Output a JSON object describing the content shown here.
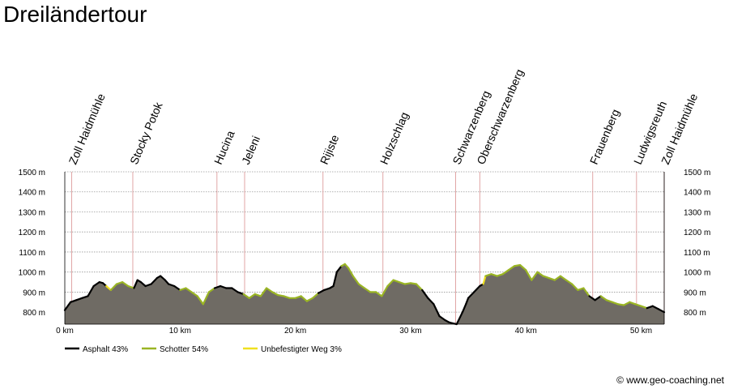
{
  "title": "Dreiländertour",
  "copyright": "© www.geo-coaching.net",
  "colors": {
    "profile_fill": "#6f6b64",
    "asphalt": "#000000",
    "gravel": "#9ab524",
    "unpaved": "#f0e020",
    "waypoint_line": "#d99090",
    "grid": "#999999"
  },
  "chart_data": {
    "type": "area",
    "title": "Dreiländertour",
    "xlabel": "",
    "ylabel": "",
    "xlim": [
      0,
      52
    ],
    "ylim": [
      740,
      1500
    ],
    "x_ticks": [
      0,
      10,
      20,
      30,
      40,
      50
    ],
    "x_tick_labels": [
      "0 km",
      "10 km",
      "20 km",
      "30 km",
      "40 km",
      "50 km"
    ],
    "y_ticks": [
      800,
      900,
      1000,
      1100,
      1200,
      1300,
      1400,
      1500
    ],
    "y_tick_labels": [
      "800 m",
      "900 m",
      "1000 m",
      "1100 m",
      "1200 m",
      "1300 m",
      "1400 m",
      "1500 m"
    ],
    "grid": true,
    "legend_position": "bottom-left",
    "waypoints": [
      {
        "name": "Zoll Haidmühle",
        "km": 0.6
      },
      {
        "name": "Stocky Potok",
        "km": 5.9
      },
      {
        "name": "Hucina",
        "km": 13.2
      },
      {
        "name": "Jeleni",
        "km": 15.6
      },
      {
        "name": "Rijiste",
        "km": 22.4
      },
      {
        "name": "Holzschlag",
        "km": 27.6
      },
      {
        "name": "Schwarzenberg",
        "km": 33.9
      },
      {
        "name": "Oberschwarzenberg",
        "km": 36.0
      },
      {
        "name": "Frauenberg",
        "km": 45.8
      },
      {
        "name": "Ludwigsreuth",
        "km": 49.6
      },
      {
        "name": "Zoll Haidmühle",
        "km": 52.0
      }
    ],
    "surface_legend": [
      {
        "name": "Asphalt 43%",
        "key": "asphalt"
      },
      {
        "name": "Schotter 54%",
        "key": "gravel"
      },
      {
        "name": "Unbefestigter Weg 3%",
        "key": "unpaved"
      }
    ],
    "profile": {
      "x": [
        0,
        0.5,
        1,
        1.5,
        2,
        2.5,
        3,
        3.3,
        3.6,
        4,
        4.5,
        5,
        5.5,
        6,
        6.3,
        6.6,
        7,
        7.5,
        8,
        8.3,
        8.7,
        9,
        9.5,
        10,
        10.5,
        11,
        11.5,
        12,
        12.5,
        13,
        13.5,
        14,
        14.5,
        15,
        15.5,
        16,
        16.5,
        17,
        17.5,
        18,
        18.5,
        19,
        19.5,
        20,
        20.5,
        21,
        21.5,
        22,
        22.5,
        23,
        23.3,
        23.6,
        24,
        24.3,
        24.6,
        25,
        25.5,
        26,
        26.5,
        27,
        27.5,
        28,
        28.5,
        29,
        29.5,
        30,
        30.5,
        31,
        31.5,
        32,
        32.5,
        33,
        33.3,
        33.6,
        34,
        34.5,
        34.8,
        35,
        35.5,
        36,
        36.3,
        36.5,
        37,
        37.5,
        38,
        38.5,
        39,
        39.5,
        40,
        40.5,
        41,
        41.5,
        42,
        42.5,
        43,
        43.5,
        44,
        44.5,
        45,
        45.5,
        46,
        46.5,
        47,
        47.5,
        48,
        48.5,
        49,
        49.5,
        50,
        50.5,
        51,
        51.5,
        52
      ],
      "y": [
        810,
        850,
        860,
        870,
        880,
        930,
        950,
        945,
        930,
        910,
        940,
        950,
        930,
        920,
        960,
        950,
        930,
        940,
        970,
        980,
        960,
        940,
        930,
        910,
        920,
        900,
        880,
        840,
        900,
        920,
        930,
        920,
        920,
        900,
        890,
        870,
        890,
        880,
        920,
        900,
        885,
        880,
        870,
        870,
        880,
        855,
        870,
        895,
        910,
        920,
        930,
        1000,
        1030,
        1040,
        1020,
        980,
        940,
        920,
        900,
        900,
        880,
        930,
        960,
        950,
        940,
        945,
        940,
        910,
        870,
        840,
        780,
        760,
        750,
        745,
        740,
        800,
        840,
        870,
        900,
        930,
        940,
        980,
        990,
        980,
        990,
        1010,
        1030,
        1035,
        1010,
        960,
        1000,
        980,
        970,
        960,
        980,
        960,
        940,
        910,
        920,
        880,
        860,
        880,
        860,
        850,
        840,
        835,
        850,
        840,
        830,
        820,
        830,
        815,
        800
      ],
      "surface": [
        "asphalt",
        "asphalt",
        "asphalt",
        "asphalt",
        "asphalt",
        "asphalt",
        "asphalt",
        "asphalt",
        "unpaved",
        "gravel",
        "gravel",
        "gravel",
        "gravel",
        "asphalt",
        "asphalt",
        "asphalt",
        "asphalt",
        "asphalt",
        "asphalt",
        "asphalt",
        "asphalt",
        "asphalt",
        "asphalt",
        "gravel",
        "gravel",
        "gravel",
        "gravel",
        "gravel",
        "gravel",
        "asphalt",
        "asphalt",
        "asphalt",
        "asphalt",
        "asphalt",
        "gravel",
        "gravel",
        "gravel",
        "gravel",
        "gravel",
        "gravel",
        "gravel",
        "gravel",
        "gravel",
        "gravel",
        "gravel",
        "gravel",
        "gravel",
        "asphalt",
        "asphalt",
        "asphalt",
        "asphalt",
        "asphalt",
        "gravel",
        "gravel",
        "gravel",
        "gravel",
        "gravel",
        "gravel",
        "gravel",
        "gravel",
        "gravel",
        "gravel",
        "gravel",
        "gravel",
        "gravel",
        "gravel",
        "gravel",
        "asphalt",
        "asphalt",
        "asphalt",
        "asphalt",
        "asphalt",
        "asphalt",
        "asphalt",
        "asphalt",
        "asphalt",
        "asphalt",
        "asphalt",
        "asphalt",
        "asphalt",
        "unpaved",
        "gravel",
        "gravel",
        "gravel",
        "gravel",
        "gravel",
        "gravel",
        "gravel",
        "gravel",
        "gravel",
        "gravel",
        "gravel",
        "gravel",
        "gravel",
        "gravel",
        "gravel",
        "gravel",
        "gravel",
        "gravel",
        "asphalt",
        "asphalt",
        "gravel",
        "gravel",
        "gravel",
        "gravel",
        "gravel",
        "gravel",
        "gravel",
        "gravel",
        "asphalt",
        "asphalt",
        "asphalt",
        "asphalt"
      ]
    }
  }
}
